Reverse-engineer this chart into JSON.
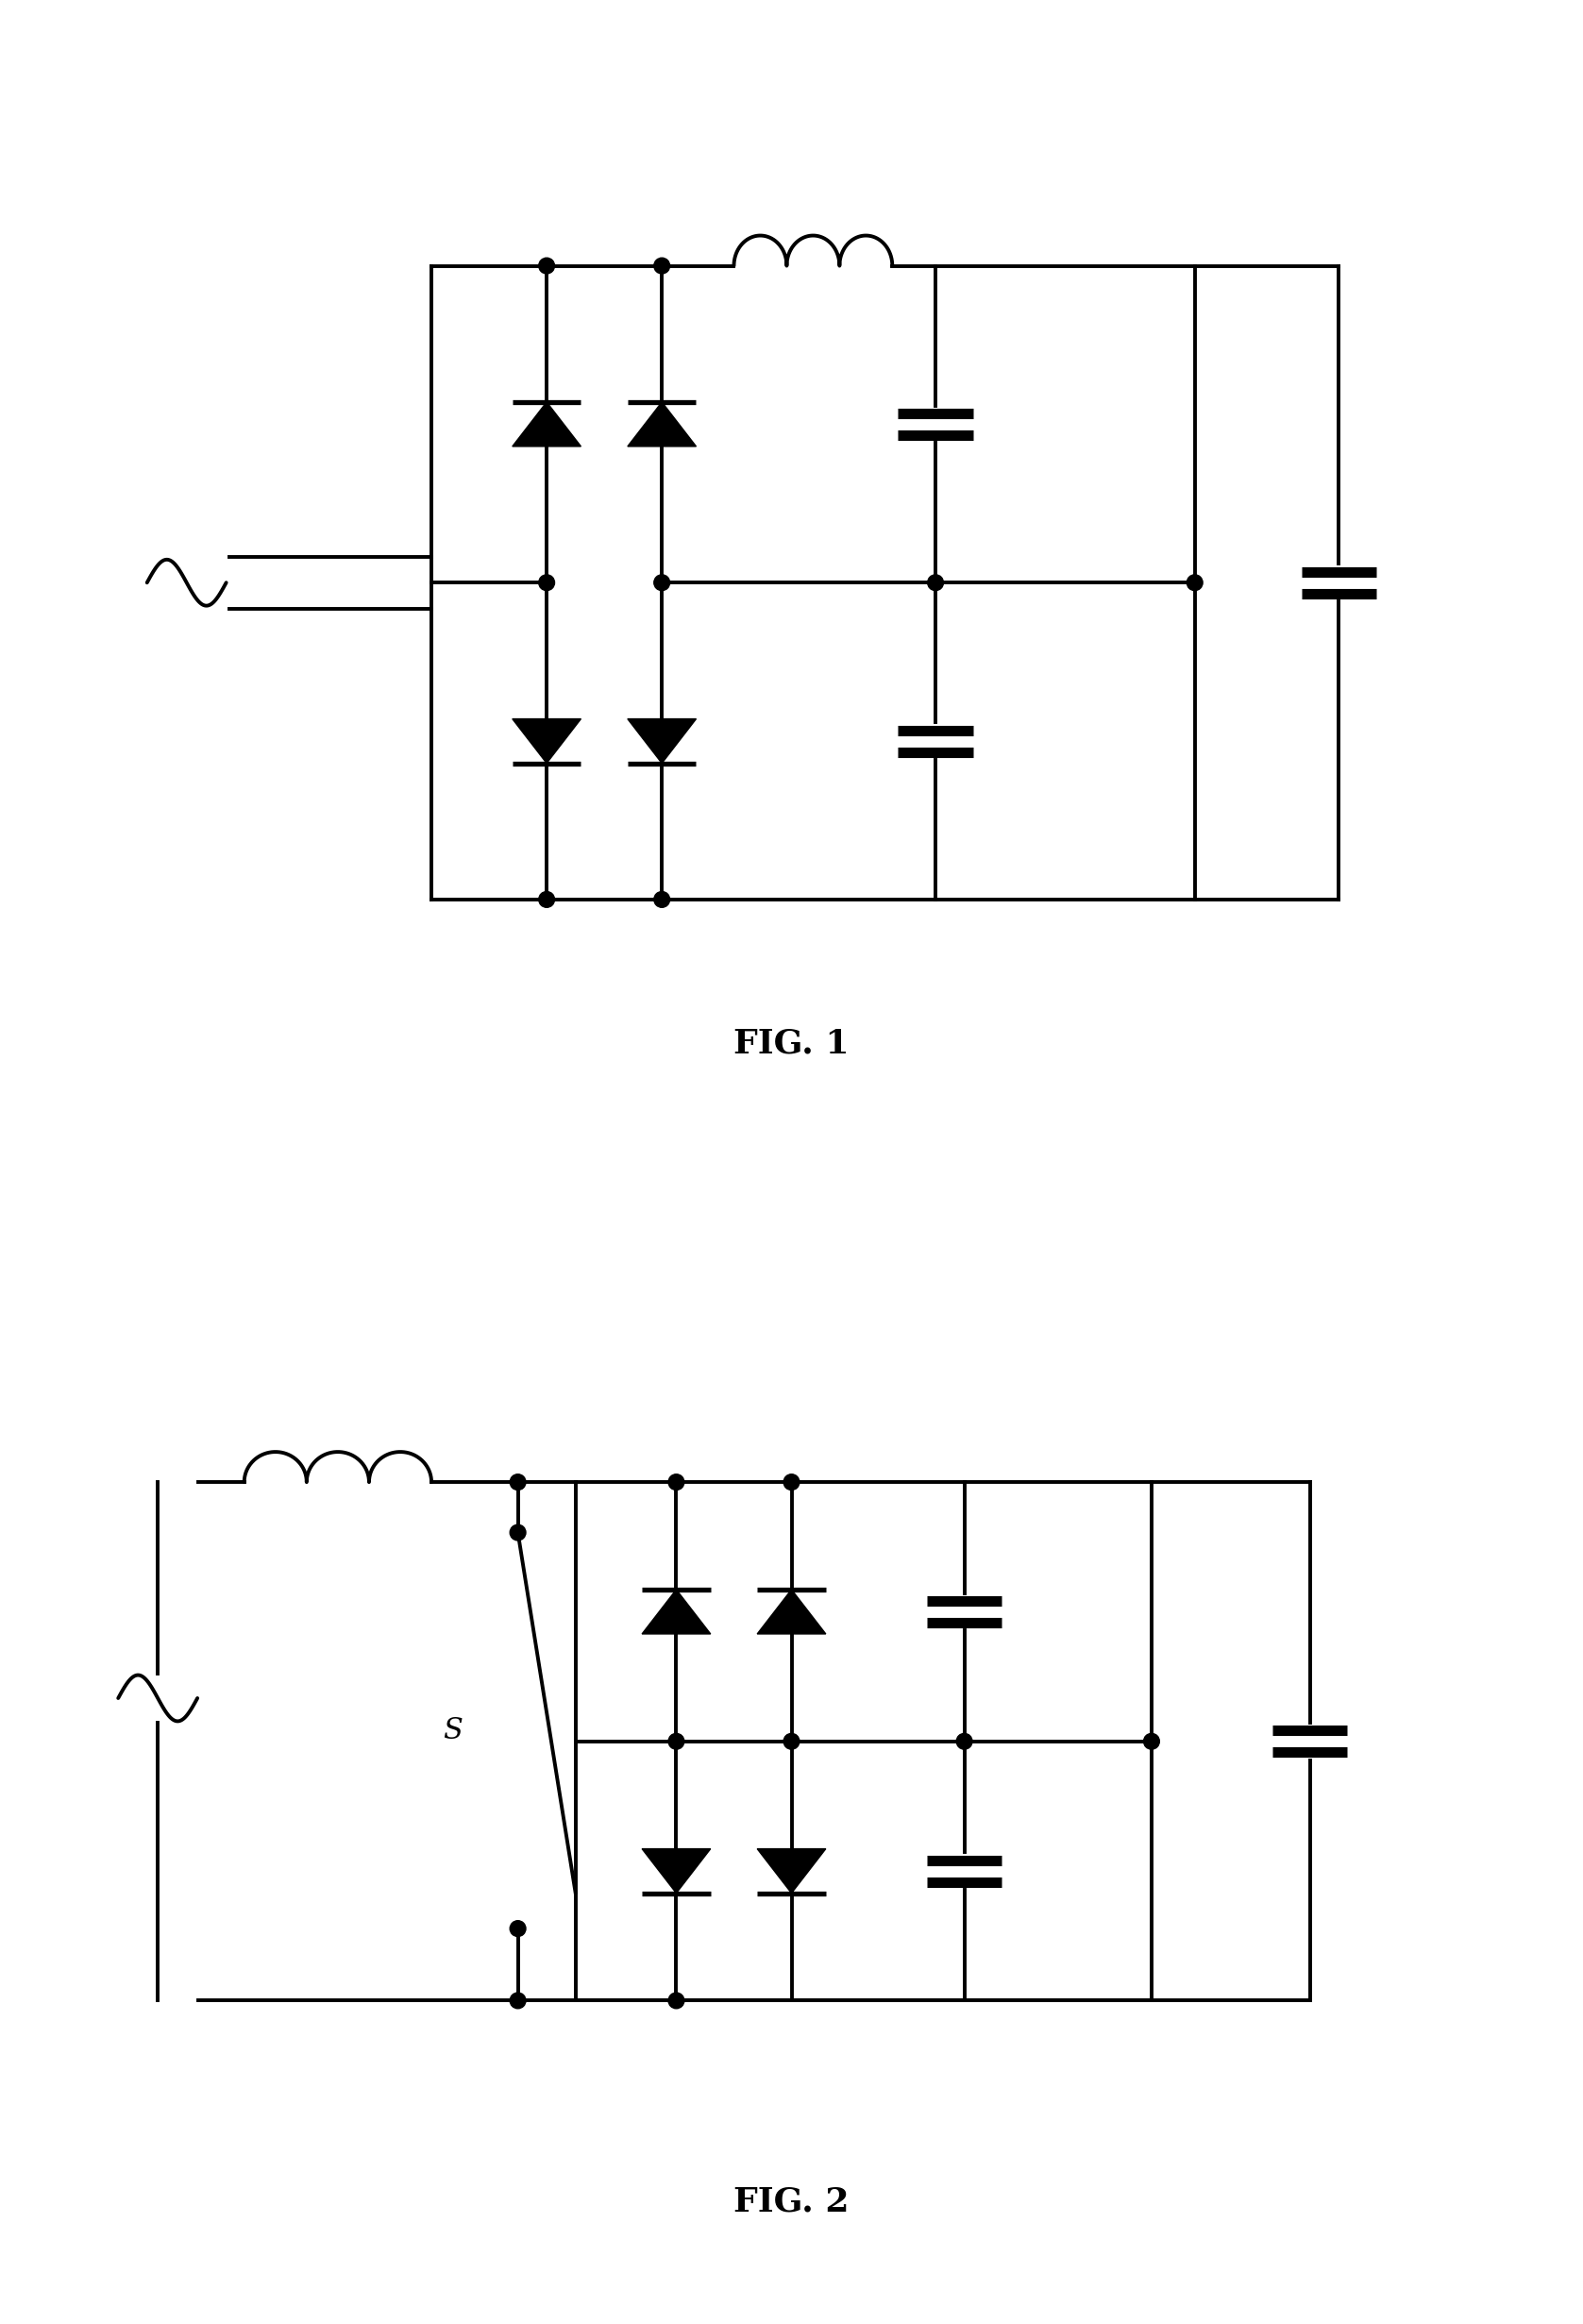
{
  "fig_width": 16.77,
  "fig_height": 24.62,
  "bg_color": "#ffffff",
  "line_color": "#000000",
  "line_width": 2.8,
  "fig1_label": "FIG. 1",
  "fig2_label": "FIG. 2",
  "switch_label": "S"
}
